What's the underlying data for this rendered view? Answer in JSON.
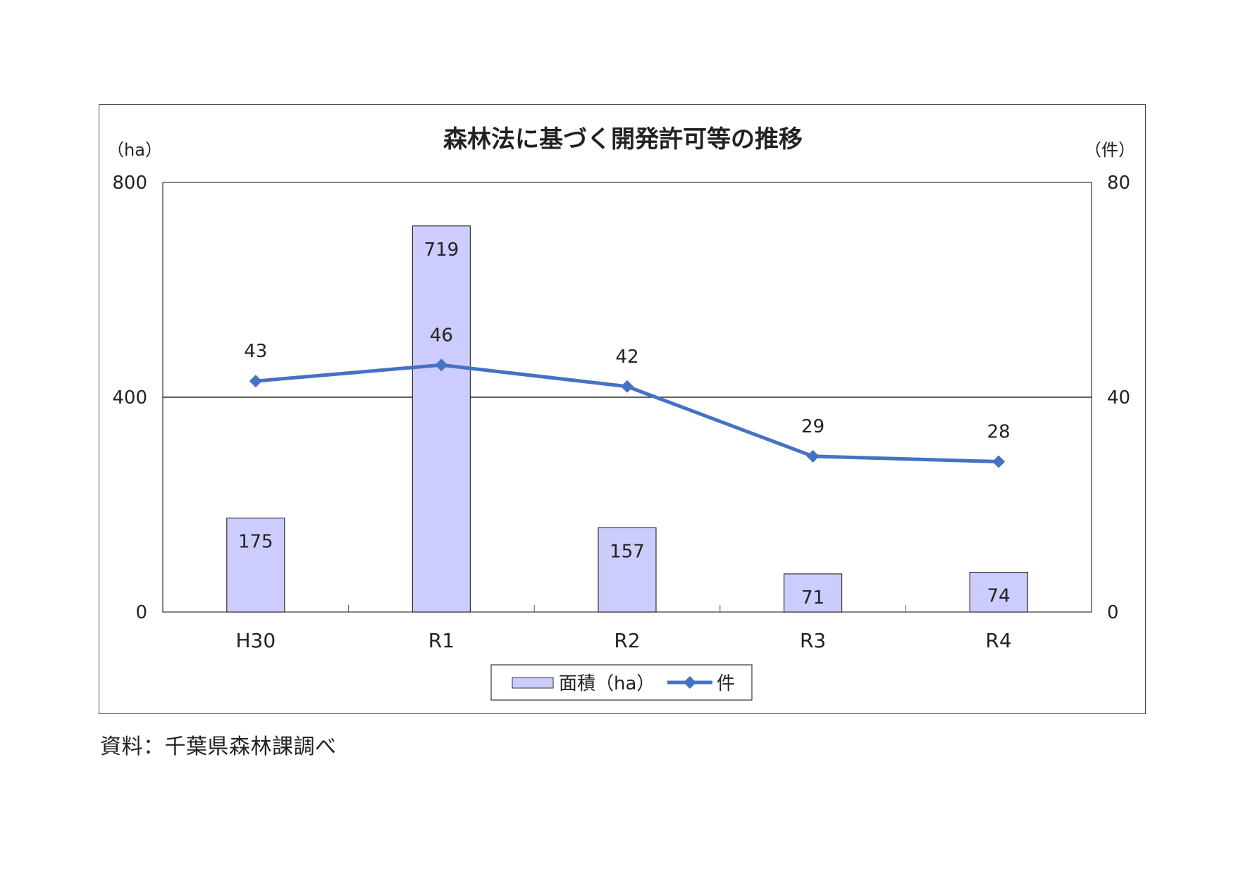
{
  "chart_data": {
    "type": "bar+line",
    "title": "森林法に基づく開発許可等の推移",
    "categories": [
      "H30",
      "R1",
      "R2",
      "R3",
      "R4"
    ],
    "left_axis": {
      "unit_label": "（ha）",
      "ylim": [
        0,
        800
      ],
      "ticks": [
        "0",
        "400",
        "800"
      ]
    },
    "right_axis": {
      "unit_label": "（件）",
      "ylim": [
        0,
        80
      ],
      "ticks": [
        "0",
        "40",
        "80"
      ]
    },
    "grid": "horizontal line at 400 / 40",
    "series": [
      {
        "name": "面積（ha）",
        "kind": "bar",
        "axis": "left",
        "values": [
          175,
          719,
          157,
          71,
          74
        ],
        "labels": [
          "175",
          "719",
          "157",
          "71",
          "74"
        ],
        "color": "#ccccff",
        "edge": "#333333"
      },
      {
        "name": "件",
        "kind": "line",
        "axis": "right",
        "values": [
          43,
          46,
          42,
          29,
          28
        ],
        "labels": [
          "43",
          "46",
          "42",
          "29",
          "28"
        ],
        "color": "#4472c4",
        "marker": "diamond"
      }
    ],
    "legend": {
      "placement": "bottom-center"
    }
  },
  "source_note": "資料：千葉県森林課調べ"
}
